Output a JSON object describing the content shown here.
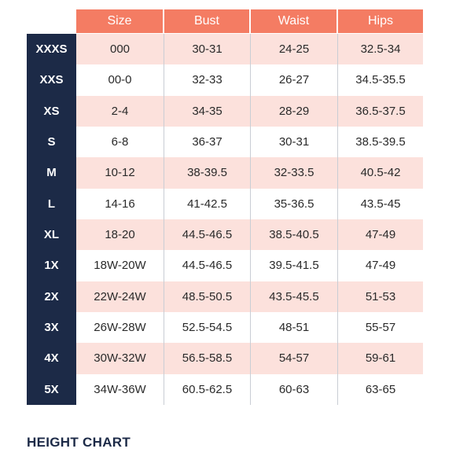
{
  "headers": {
    "size": "Size",
    "bust": "Bust",
    "waist": "Waist",
    "hips": "Hips"
  },
  "rows": [
    {
      "label": "XXXS",
      "size": "000",
      "bust": "30-31",
      "waist": "24-25",
      "hips": "32.5-34"
    },
    {
      "label": "XXS",
      "size": "00-0",
      "bust": "32-33",
      "waist": "26-27",
      "hips": "34.5-35.5"
    },
    {
      "label": "XS",
      "size": "2-4",
      "bust": "34-35",
      "waist": "28-29",
      "hips": "36.5-37.5"
    },
    {
      "label": "S",
      "size": "6-8",
      "bust": "36-37",
      "waist": "30-31",
      "hips": "38.5-39.5"
    },
    {
      "label": "M",
      "size": "10-12",
      "bust": "38-39.5",
      "waist": "32-33.5",
      "hips": "40.5-42"
    },
    {
      "label": "L",
      "size": "14-16",
      "bust": "41-42.5",
      "waist": "35-36.5",
      "hips": "43.5-45"
    },
    {
      "label": "XL",
      "size": "18-20",
      "bust": "44.5-46.5",
      "waist": "38.5-40.5",
      "hips": "47-49"
    },
    {
      "label": "1X",
      "size": "18W-20W",
      "bust": "44.5-46.5",
      "waist": "39.5-41.5",
      "hips": "47-49"
    },
    {
      "label": "2X",
      "size": "22W-24W",
      "bust": "48.5-50.5",
      "waist": "43.5-45.5",
      "hips": "51-53"
    },
    {
      "label": "3X",
      "size": "26W-28W",
      "bust": "52.5-54.5",
      "waist": "48-51",
      "hips": "55-57"
    },
    {
      "label": "4X",
      "size": "30W-32W",
      "bust": "56.5-58.5",
      "waist": "54-57",
      "hips": "59-61"
    },
    {
      "label": "5X",
      "size": "34W-36W",
      "bust": "60.5-62.5",
      "waist": "60-63",
      "hips": "63-65"
    }
  ],
  "height_chart": {
    "title": "HEIGHT CHART"
  },
  "colors": {
    "header_bg": "#f47c63",
    "label_col_bg": "#1c2a47",
    "stripe_pink": "#fce1dc"
  }
}
